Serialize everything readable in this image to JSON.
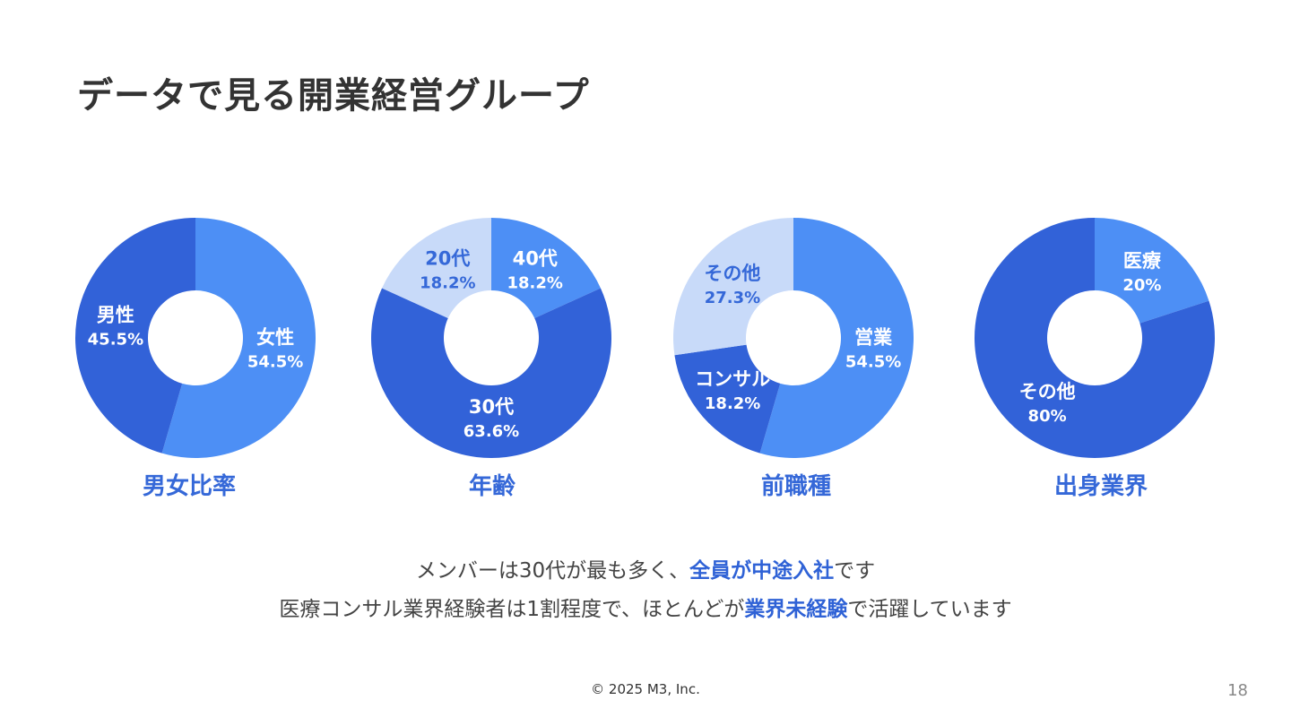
{
  "title": "データで見る開業経営グループ",
  "colors": {
    "dark_blue": "#3262d8",
    "mid_blue": "#4d8ff5",
    "light_blue": "#c8daf9",
    "label_white": "#ffffff",
    "label_blue": "#3568d8",
    "accent": "#2f62d6",
    "text": "#444444"
  },
  "chart_data": [
    {
      "type": "pie",
      "variant": "donut",
      "title": "男女比率",
      "slices": [
        {
          "label": "女性",
          "value": 54.5,
          "display": "54.5%",
          "color": "#4d8ff5",
          "text_color": "#ffffff"
        },
        {
          "label": "男性",
          "value": 45.5,
          "display": "45.5%",
          "color": "#3262d8",
          "text_color": "#ffffff"
        }
      ]
    },
    {
      "type": "pie",
      "variant": "donut",
      "title": "年齢",
      "slices": [
        {
          "label": "40代",
          "value": 18.2,
          "display": "18.2%",
          "color": "#4d8ff5",
          "text_color": "#ffffff"
        },
        {
          "label": "30代",
          "value": 63.6,
          "display": "63.6%",
          "color": "#3262d8",
          "text_color": "#ffffff"
        },
        {
          "label": "20代",
          "value": 18.2,
          "display": "18.2%",
          "color": "#c8daf9",
          "text_color": "#3568d8"
        }
      ]
    },
    {
      "type": "pie",
      "variant": "donut",
      "title": "前職種",
      "slices": [
        {
          "label": "営業",
          "value": 54.5,
          "display": "54.5%",
          "color": "#4d8ff5",
          "text_color": "#ffffff"
        },
        {
          "label": "コンサル",
          "value": 18.2,
          "display": "18.2%",
          "color": "#3262d8",
          "text_color": "#ffffff"
        },
        {
          "label": "その他",
          "value": 27.3,
          "display": "27.3%",
          "color": "#c8daf9",
          "text_color": "#3568d8"
        }
      ]
    },
    {
      "type": "pie",
      "variant": "donut",
      "title": "出身業界",
      "slices": [
        {
          "label": "医療",
          "value": 20,
          "display": "20%",
          "color": "#4d8ff5",
          "text_color": "#ffffff"
        },
        {
          "label": "その他",
          "value": 80,
          "display": "80%",
          "color": "#3262d8",
          "text_color": "#ffffff"
        }
      ]
    }
  ],
  "summary": {
    "line1": {
      "pre": "メンバーは30代が最も多く、",
      "highlight": "全員が中途入社",
      "post": "です"
    },
    "line2": {
      "pre": "医療コンサル業界経験者は1割程度で、ほとんどが",
      "highlight": "業界未経験",
      "post": "で活躍しています"
    }
  },
  "footer": {
    "copyright": "© 2025 M3, Inc.",
    "page_number": "18"
  }
}
